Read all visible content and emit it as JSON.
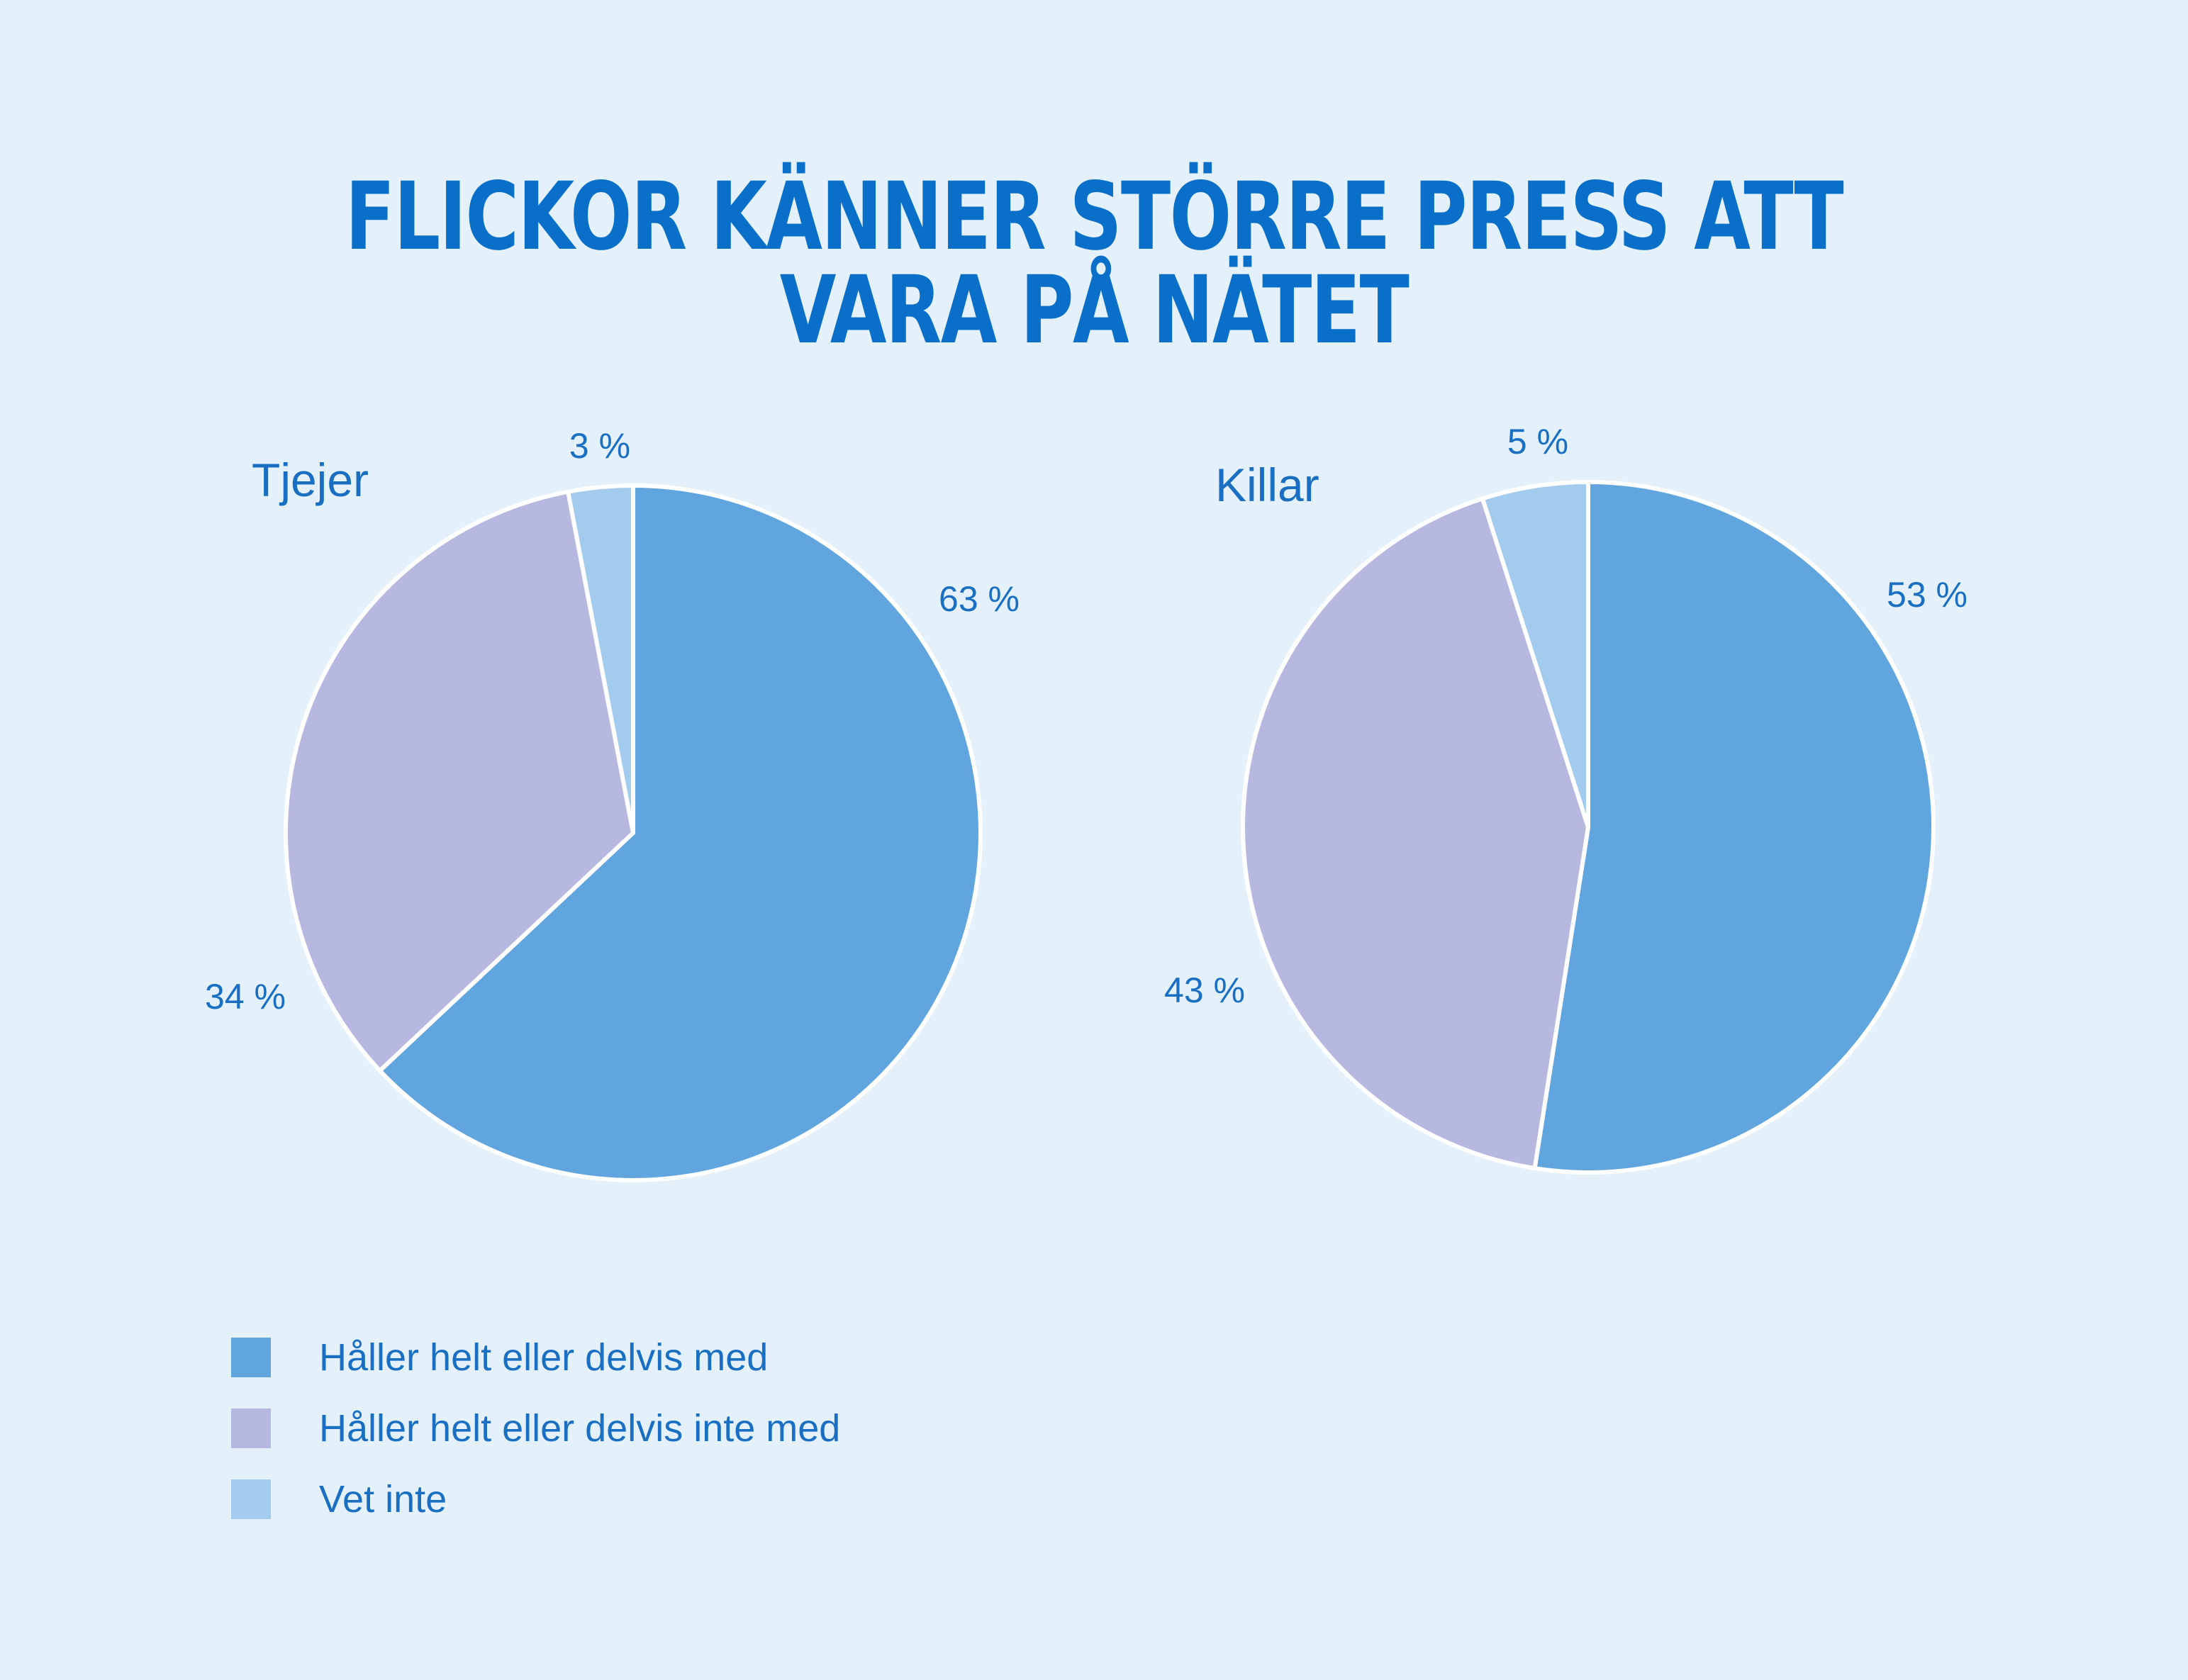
{
  "title": "FLICKOR KÄNNER STÖRRE PRESS ATT VARA PÅ NÄTET",
  "colors": {
    "agree": "#61a5df",
    "disagree": "#b6b8e0",
    "dont_know": "#a3cbee",
    "text": "#1a6fc2",
    "background": "#e4f1fa"
  },
  "legend": [
    {
      "label": "Håller helt eller delvis med",
      "color": "#61a5df"
    },
    {
      "label": "Håller helt eller delvis inte med",
      "color": "#b6b8e0"
    },
    {
      "label": "Vet inte",
      "color": "#a3cbee"
    }
  ],
  "chart_data": [
    {
      "type": "pie",
      "title": "Tjejer",
      "categories": [
        "Håller helt eller delvis med",
        "Håller helt eller delvis inte med",
        "Vet inte"
      ],
      "values": [
        63,
        34,
        3
      ],
      "labels": [
        "63 %",
        "34 %",
        "3 %"
      ],
      "colors": [
        "#61a5df",
        "#b6b8e0",
        "#a3cbee"
      ]
    },
    {
      "type": "pie",
      "title": "Killar",
      "categories": [
        "Håller helt eller delvis med",
        "Håller helt eller delvis inte med",
        "Vet inte"
      ],
      "values": [
        53,
        43,
        5
      ],
      "labels": [
        "53 %",
        "43 %",
        "5 %"
      ],
      "colors": [
        "#61a5df",
        "#b6b8e0",
        "#a3cbee"
      ]
    }
  ]
}
